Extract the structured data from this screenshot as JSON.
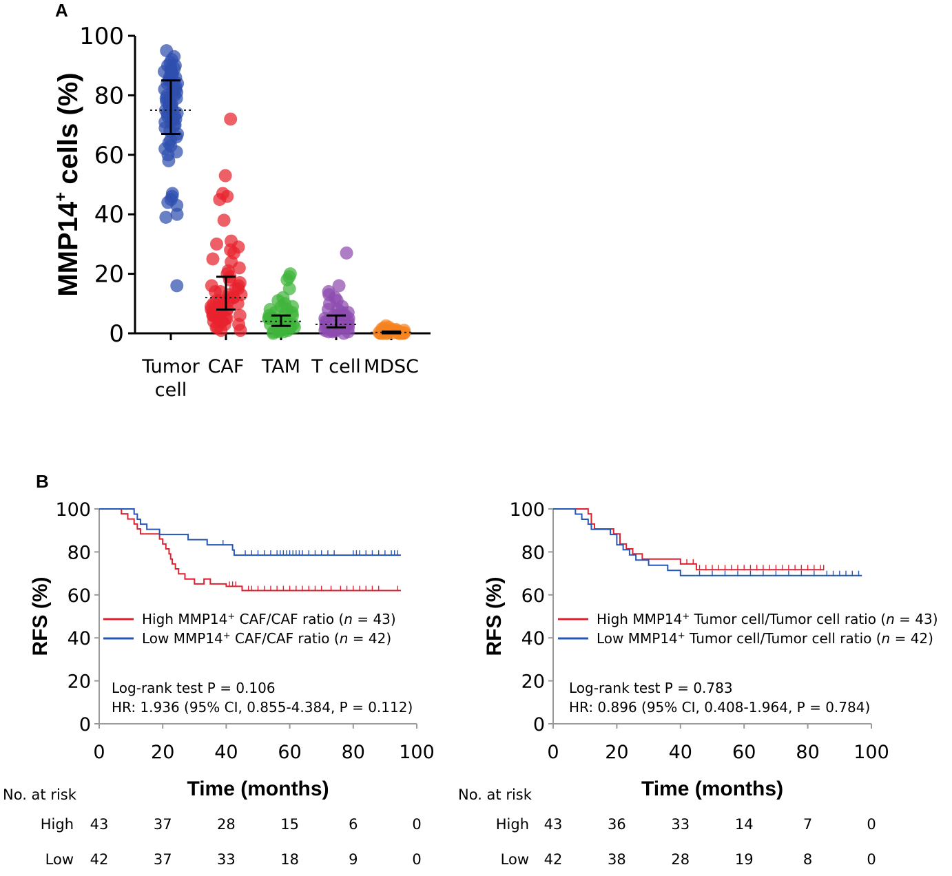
{
  "panelA": {
    "letter": "A",
    "chart_data": {
      "type": "scatter",
      "ylabel": "MMP14⁺ cells (%)",
      "ylabel_main": "MMP14",
      "ylabel_sup": "+",
      "ylabel_rest": " cells (%)",
      "ylim": [
        0,
        100
      ],
      "yticks": [
        "0",
        "20",
        "40",
        "60",
        "80",
        "100"
      ],
      "categories": [
        {
          "name": "Tumor cell",
          "label_lines": [
            "Tumor",
            "cell"
          ],
          "color": "#2f4fae",
          "median": 75,
          "q1": 67,
          "q3": 85,
          "values": [
            95,
            93,
            92,
            91,
            90,
            90,
            89,
            89,
            88,
            88,
            88,
            87,
            87,
            86,
            86,
            85,
            85,
            84,
            84,
            83,
            83,
            82,
            82,
            81,
            81,
            80,
            80,
            79,
            79,
            78,
            78,
            77,
            77,
            76,
            76,
            75,
            75,
            74,
            74,
            73,
            73,
            72,
            72,
            71,
            71,
            70,
            70,
            69,
            68,
            67,
            66,
            65,
            64,
            63,
            62,
            61,
            60,
            58,
            47,
            46,
            45,
            44,
            43,
            40,
            39,
            16
          ]
        },
        {
          "name": "CAF",
          "label_lines": [
            "CAF"
          ],
          "color": "#e8222e",
          "median": 12,
          "q1": 8,
          "q3": 19,
          "values": [
            72,
            53,
            47,
            46,
            45,
            38,
            31,
            30,
            29,
            28,
            27,
            25,
            24,
            22,
            21,
            20,
            19,
            18,
            17,
            16,
            16,
            15,
            15,
            14,
            14,
            13,
            13,
            12,
            12,
            12,
            11,
            11,
            11,
            10,
            10,
            10,
            9,
            9,
            9,
            8,
            8,
            8,
            7,
            7,
            7,
            6,
            6,
            6,
            5,
            5,
            5,
            4,
            4,
            4,
            3,
            3,
            2,
            2,
            1,
            1
          ]
        },
        {
          "name": "TAM",
          "label_lines": [
            "TAM"
          ],
          "color": "#3fb43a",
          "median": 4,
          "q1": 2.5,
          "q3": 6,
          "values": [
            20,
            19,
            18,
            15,
            12,
            11,
            10,
            9,
            9,
            8,
            8,
            7,
            7,
            6,
            6,
            6,
            5,
            5,
            5,
            5,
            4,
            4,
            4,
            4,
            3,
            3,
            3,
            3,
            2,
            2,
            2,
            2,
            1,
            1,
            1,
            1,
            0.5,
            0.5,
            0.5,
            0
          ]
        },
        {
          "name": "T cell",
          "label_lines": [
            "T cell"
          ],
          "color": "#8e4bb0",
          "median": 3,
          "q1": 2,
          "q3": 6,
          "values": [
            27,
            16,
            14,
            13,
            12,
            11,
            10,
            9,
            8,
            8,
            7,
            7,
            6,
            6,
            6,
            5,
            5,
            5,
            4,
            4,
            4,
            4,
            3,
            3,
            3,
            3,
            2,
            2,
            2,
            2,
            1,
            1,
            1,
            1,
            0.5,
            0.5,
            0.5,
            0
          ]
        },
        {
          "name": "MDSC",
          "label_lines": [
            "MDSC"
          ],
          "color": "#f58220",
          "median": 0.3,
          "q1": 0,
          "q3": 0.6,
          "values": [
            2.5,
            2,
            1.8,
            1.5,
            1.3,
            1.2,
            1,
            1,
            0.8,
            0.8,
            0.6,
            0.6,
            0.5,
            0.5,
            0.4,
            0.4,
            0.3,
            0.3,
            0.2,
            0.2,
            0.1,
            0.1,
            0,
            0,
            0,
            0,
            0,
            0,
            0,
            0
          ]
        }
      ]
    }
  },
  "panelB": {
    "letter": "B",
    "charts": [
      {
        "chart_data": {
          "type": "line",
          "xlabel": "Time (months)",
          "ylabel": "RFS (%)",
          "xlim": [
            0,
            100
          ],
          "ylim": [
            0,
            100
          ],
          "xticks": [
            "0",
            "20",
            "40",
            "60",
            "80",
            "100"
          ],
          "yticks": [
            "0",
            "20",
            "40",
            "60",
            "80",
            "100"
          ],
          "series": [
            {
              "name": "High",
              "color": "#e02030",
              "legend_prefix": "High  MMP14",
              "legend_sup": "+",
              "legend_mid": "  CAF/CAF ratio (",
              "legend_n": "n",
              "legend_suffix": " = 43)",
              "steps": [
                [
                  0,
                  100
                ],
                [
                  7,
                  97.7
                ],
                [
                  9,
                  95.3
                ],
                [
                  11,
                  93
                ],
                [
                  12,
                  90.7
                ],
                [
                  13,
                  88.4
                ],
                [
                  19,
                  86
                ],
                [
                  20,
                  83.7
                ],
                [
                  21,
                  81.4
                ],
                [
                  22,
                  79.1
                ],
                [
                  22.5,
                  76.7
                ],
                [
                  23,
                  74.4
                ],
                [
                  24,
                  72.1
                ],
                [
                  25,
                  69.8
                ],
                [
                  27,
                  67.4
                ],
                [
                  30,
                  65.1
                ],
                [
                  33,
                  67.4
                ],
                [
                  35,
                  65.1
                ],
                [
                  40,
                  64
                ],
                [
                  45,
                  62
                ],
                [
                  95,
                  62
                ]
              ],
              "censor": [
                41,
                42,
                43,
                45,
                47,
                48,
                50,
                52,
                54,
                56,
                58,
                60,
                62,
                64,
                66,
                68,
                70,
                73,
                76,
                78,
                80,
                82,
                84,
                86,
                88,
                94
              ]
            },
            {
              "name": "Low",
              "color": "#2456b8",
              "legend_prefix": "Low  MMP14",
              "legend_sup": "+",
              "legend_mid": "  CAF/CAF ratio (",
              "legend_n": "n",
              "legend_suffix": " = 42)",
              "steps": [
                [
                  0,
                  100
                ],
                [
                  11,
                  97.6
                ],
                [
                  12,
                  95.2
                ],
                [
                  13,
                  92.9
                ],
                [
                  15,
                  90.5
                ],
                [
                  19,
                  88.1
                ],
                [
                  28,
                  85.7
                ],
                [
                  34,
                  83.3
                ],
                [
                  42,
                  80.9
                ],
                [
                  42.5,
                  78.5
                ],
                [
                  95,
                  78.5
                ]
              ],
              "censor": [
                39,
                46,
                48,
                50,
                52,
                54,
                56,
                57,
                58,
                59,
                60,
                61,
                62,
                63,
                64,
                66,
                68,
                70,
                72,
                74,
                80,
                81,
                82,
                84,
                86,
                88,
                90,
                92,
                93,
                94
              ]
            }
          ],
          "stat_lines": [
            "Log-rank test P = 0.106",
            "HR: 1.936 (95% CI,  0.855-4.384, P = 0.112)"
          ],
          "risk_table": {
            "header": "No. at risk",
            "times": [
              "0",
              "20",
              "40",
              "60",
              "80",
              "100"
            ],
            "rows": [
              {
                "label": "High",
                "values": [
                  "43",
                  "37",
                  "28",
                  "15",
                  "6",
                  "0"
                ]
              },
              {
                "label": "Low",
                "values": [
                  "42",
                  "37",
                  "33",
                  "18",
                  "9",
                  "0"
                ]
              }
            ]
          }
        }
      },
      {
        "chart_data": {
          "type": "line",
          "xlabel": "Time (months)",
          "ylabel": "RFS (%)",
          "xlim": [
            0,
            100
          ],
          "ylim": [
            0,
            100
          ],
          "xticks": [
            "0",
            "20",
            "40",
            "60",
            "80",
            "100"
          ],
          "yticks": [
            "0",
            "20",
            "40",
            "60",
            "80",
            "100"
          ],
          "series": [
            {
              "name": "High",
              "color": "#e02030",
              "legend_prefix": "High  MMP14",
              "legend_sup": "+",
              "legend_mid": "  Tumor cell/Tumor cell ratio (",
              "legend_n": "n",
              "legend_suffix": " = 43)",
              "steps": [
                [
                  0,
                  100
                ],
                [
                  11,
                  97.7
                ],
                [
                  12,
                  93
                ],
                [
                  13,
                  90.7
                ],
                [
                  19,
                  88.4
                ],
                [
                  21,
                  83.7
                ],
                [
                  23,
                  81.4
                ],
                [
                  25,
                  79.1
                ],
                [
                  28,
                  76.7
                ],
                [
                  40,
                  74.4
                ],
                [
                  45,
                  71.7
                ],
                [
                  85,
                  71.7
                ]
              ],
              "censor": [
                40,
                42,
                44,
                46,
                48,
                50,
                52,
                54,
                56,
                58,
                60,
                62,
                64,
                66,
                68,
                70,
                72,
                74,
                76,
                78,
                80,
                82,
                84,
                85
              ]
            },
            {
              "name": "Low",
              "color": "#2456b8",
              "legend_prefix": "Low  MMP14",
              "legend_sup": "+",
              "legend_mid": "  Tumor cell/Tumor cell ratio (",
              "legend_n": "n",
              "legend_suffix": " = 42)",
              "steps": [
                [
                  0,
                  100
                ],
                [
                  7,
                  97.6
                ],
                [
                  9,
                  95.2
                ],
                [
                  11,
                  92.9
                ],
                [
                  12,
                  90.5
                ],
                [
                  18,
                  88.1
                ],
                [
                  20,
                  83.3
                ],
                [
                  22,
                  81
                ],
                [
                  24,
                  78.6
                ],
                [
                  26,
                  76.2
                ],
                [
                  30,
                  73.8
                ],
                [
                  36,
                  71.4
                ],
                [
                  40,
                  69
                ],
                [
                  97,
                  69
                ]
              ],
              "censor": [
                46,
                50,
                54,
                58,
                62,
                66,
                70,
                74,
                78,
                82,
                86,
                88,
                90,
                92,
                94,
                96
              ]
            }
          ],
          "stat_lines": [
            "Log-rank test P = 0.783",
            "HR: 0.896 (95% CI,  0.408-1.964, P = 0.784)"
          ],
          "risk_table": {
            "header": "No. at risk",
            "times": [
              "0",
              "20",
              "40",
              "60",
              "80",
              "100"
            ],
            "rows": [
              {
                "label": "High",
                "values": [
                  "43",
                  "36",
                  "33",
                  "14",
                  "7",
                  "0"
                ]
              },
              {
                "label": "Low",
                "values": [
                  "42",
                  "38",
                  "28",
                  "19",
                  "8",
                  "0"
                ]
              }
            ]
          }
        }
      }
    ]
  }
}
